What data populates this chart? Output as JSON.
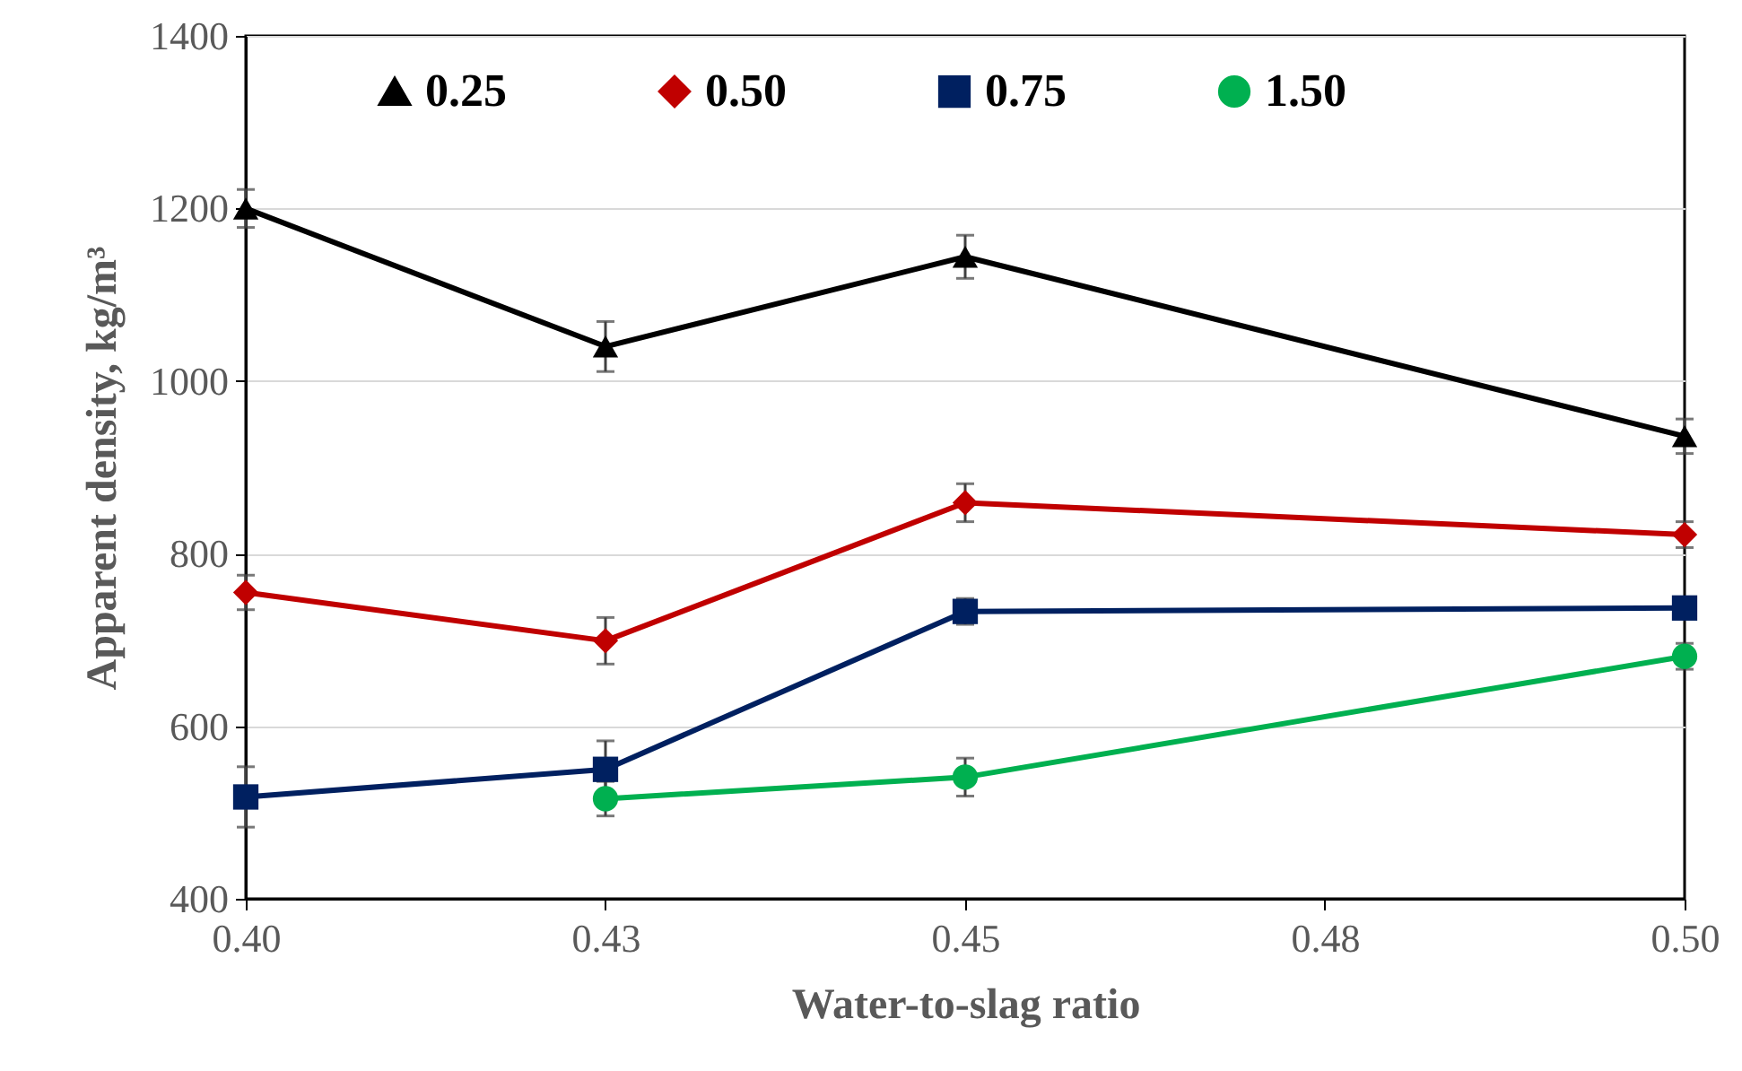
{
  "chart_data": {
    "type": "line",
    "xlabel": "Water-to-slag ratio",
    "ylabel": "Apparent density, kg/m³",
    "x": [
      0.4,
      0.425,
      0.45,
      0.5
    ],
    "xlim": [
      0.4,
      0.5
    ],
    "xticks": [
      {
        "value": 0.4,
        "label": "0.40"
      },
      {
        "value": 0.425,
        "label": "0.43"
      },
      {
        "value": 0.45,
        "label": "0.45"
      },
      {
        "value": 0.475,
        "label": "0.48"
      },
      {
        "value": 0.5,
        "label": "0.50"
      }
    ],
    "ylim": [
      400,
      1400
    ],
    "yticks": [
      400,
      600,
      800,
      1000,
      1200,
      1400
    ],
    "grid": "y",
    "legend": "top",
    "series": [
      {
        "name": "0.25",
        "color": "#000000",
        "marker": "triangle",
        "values": [
          1200,
          1040,
          1144,
          936
        ],
        "errors": [
          22,
          29,
          25,
          20
        ]
      },
      {
        "name": "0.50",
        "color": "#c00000",
        "marker": "diamond",
        "values": [
          755,
          699,
          859,
          822
        ],
        "errors": [
          20,
          27,
          22,
          15
        ]
      },
      {
        "name": "0.75",
        "color": "#002060",
        "marker": "square",
        "values": [
          518,
          550,
          733,
          737
        ],
        "errors": [
          35,
          33,
          15,
          12
        ]
      },
      {
        "name": "1.50",
        "color": "#00b050",
        "marker": "circle",
        "values": [
          null,
          516,
          541,
          681
        ],
        "errors": [
          null,
          20,
          22,
          15
        ]
      }
    ]
  }
}
